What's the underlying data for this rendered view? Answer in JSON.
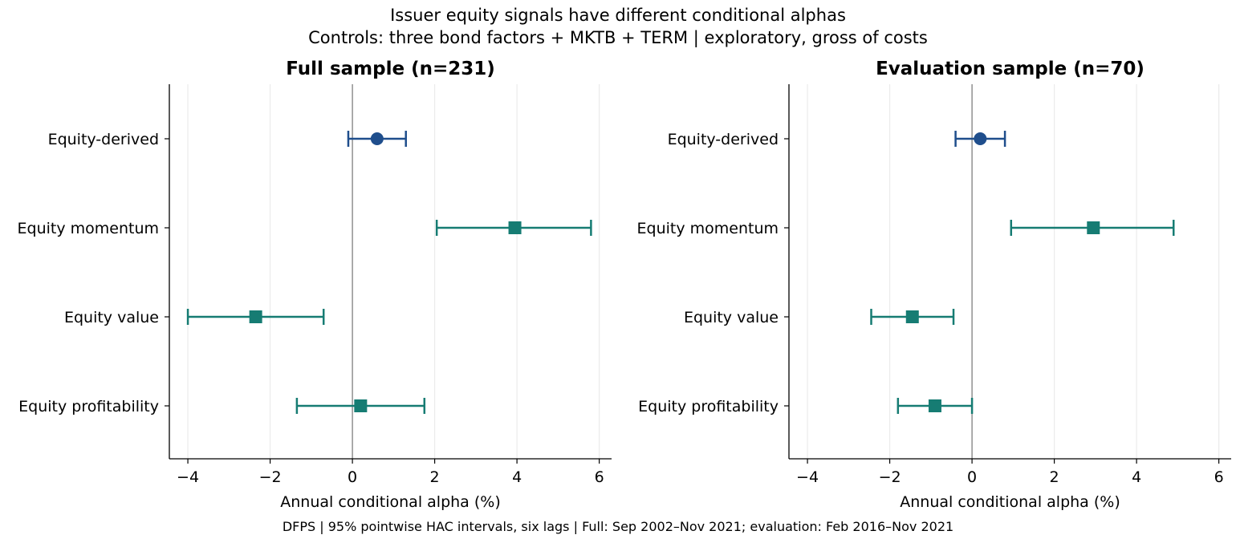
{
  "suptitle": "Issuer equity signals have different conditional alphas",
  "subtitle": "Controls: three bond factors + MKTB + TERM | exploratory, gross of costs",
  "footer": "DFPS | 95% pointwise HAC intervals, six lags | Full: Sep 2002–Nov 2021; evaluation: Feb 2016–Nov 2021",
  "colors": {
    "derived": "#1f4e8c",
    "factor": "#167c73",
    "zero_line": "#808080",
    "grid": "#ebebeb"
  },
  "chart_data": [
    {
      "type": "forest",
      "title": "Full sample (n=231)",
      "xlabel": "Annual conditional alpha (%)",
      "xlim": [
        -4.45,
        6.3
      ],
      "xticks": [
        -4,
        -2,
        0,
        2,
        4,
        6
      ],
      "xtick_labels": [
        "−4",
        "−2",
        "0",
        "2",
        "4",
        "6"
      ],
      "grid": "vertical",
      "reference_line": 0,
      "categories": [
        "Equity-derived",
        "Equity momentum",
        "Equity value",
        "Equity profitability"
      ],
      "estimates": [
        0.6,
        3.95,
        -2.35,
        0.2
      ],
      "ci_lower": [
        -0.1,
        2.05,
        -4.0,
        -1.35
      ],
      "ci_upper": [
        1.3,
        5.8,
        -0.7,
        1.75
      ],
      "markers": [
        "circle",
        "square",
        "square",
        "square"
      ]
    },
    {
      "type": "forest",
      "title": "Evaluation sample (n=70)",
      "xlabel": "Annual conditional alpha (%)",
      "xlim": [
        -4.45,
        6.3
      ],
      "xticks": [
        -4,
        -2,
        0,
        2,
        4,
        6
      ],
      "xtick_labels": [
        "−4",
        "−2",
        "0",
        "2",
        "4",
        "6"
      ],
      "grid": "vertical",
      "reference_line": 0,
      "categories": [
        "Equity-derived",
        "Equity momentum",
        "Equity value",
        "Equity profitability"
      ],
      "estimates": [
        0.2,
        2.95,
        -1.45,
        -0.9
      ],
      "ci_lower": [
        -0.4,
        0.95,
        -2.45,
        -1.8
      ],
      "ci_upper": [
        0.8,
        4.9,
        -0.45,
        0.0
      ],
      "markers": [
        "circle",
        "square",
        "square",
        "square"
      ]
    }
  ]
}
